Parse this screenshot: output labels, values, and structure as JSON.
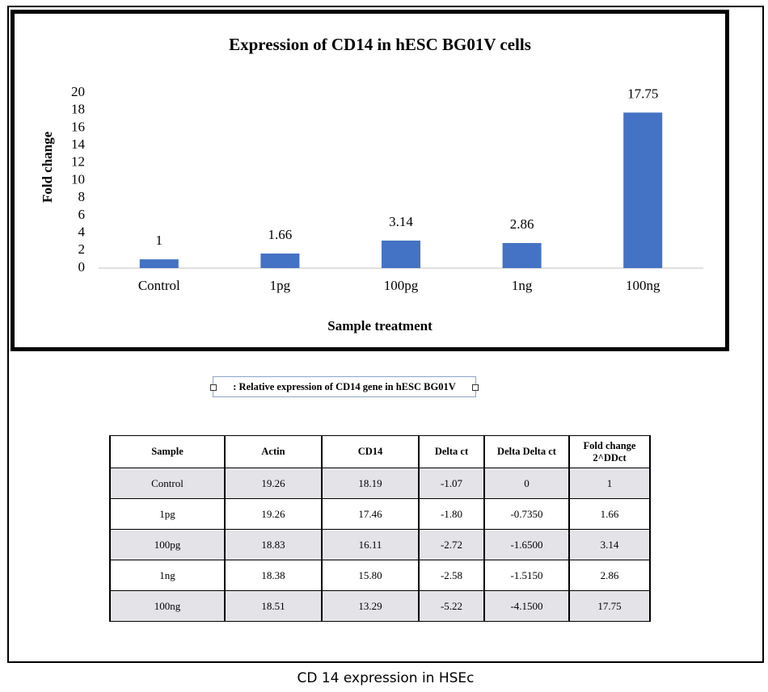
{
  "chart_data": {
    "type": "bar",
    "title": "Expression  of  CD14 in hESC BG01V cells",
    "x_label": "Sample treatment",
    "y_label": "Fold change",
    "categories": [
      "Control",
      "1pg",
      "100pg",
      "1ng",
      "100ng"
    ],
    "values": [
      1,
      1.66,
      3.14,
      2.86,
      17.75
    ],
    "color": "#4472c4",
    "ylim": [
      0,
      20
    ],
    "yticks": [
      0,
      2,
      4,
      6,
      8,
      10,
      12,
      14,
      16,
      18,
      20
    ],
    "grid": false,
    "data_labels": true
  },
  "table_caption": ": Relative expression of CD14 gene in hESC BG01V",
  "table": {
    "header": [
      "Sample",
      "Actin",
      "CD14",
      "Delta ct",
      "Delta Delta ct",
      "Fold change 2^DDct"
    ],
    "rows": [
      [
        "Control",
        "19.26",
        "18.19",
        "-1.07",
        "0",
        "1"
      ],
      [
        "1pg",
        "19.26",
        "17.46",
        "-1.80",
        "-0.7350",
        "1.66"
      ],
      [
        "100pg",
        "18.83",
        "16.11",
        "-2.72",
        "-1.6500",
        "3.14"
      ],
      [
        "1ng",
        "18.38",
        "15.80",
        "-2.58",
        "-1.5150",
        "2.86"
      ],
      [
        "100ng",
        "18.51",
        "13.29",
        "-5.22",
        "-4.1500",
        "17.75"
      ]
    ]
  },
  "figure_caption": "CD 14 expression in HSEc"
}
